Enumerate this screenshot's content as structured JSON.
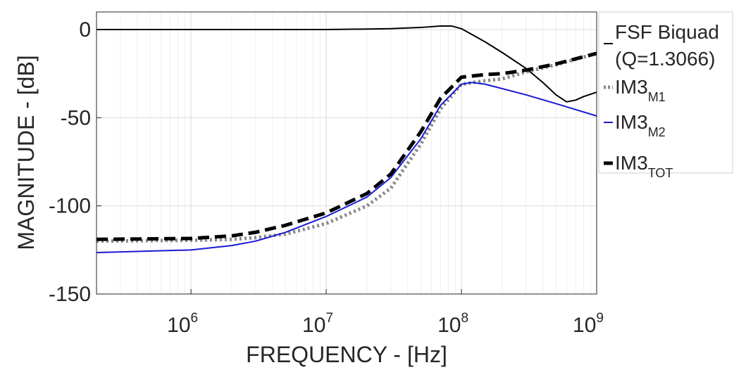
{
  "chart_data": {
    "type": "line",
    "title": "",
    "xlabel": "FREQUENCY - [Hz]",
    "ylabel": "MAGNITUDE - [dB]",
    "xscale": "log",
    "xlim": [
      200000,
      1000000000
    ],
    "ylim": [
      -150,
      10
    ],
    "grid": true,
    "legend_position": "outside-right",
    "y_ticks": [
      {
        "value": 0,
        "label": "0"
      },
      {
        "value": -50,
        "label": "-50"
      },
      {
        "value": -100,
        "label": "-100"
      },
      {
        "value": -150,
        "label": "-150"
      }
    ],
    "x_ticks": [
      {
        "value": 1000000,
        "base": "10",
        "exp": "6"
      },
      {
        "value": 10000000,
        "base": "10",
        "exp": "7"
      },
      {
        "value": 100000000,
        "base": "10",
        "exp": "8"
      },
      {
        "value": 1000000000,
        "base": "10",
        "exp": "9"
      }
    ],
    "series": [
      {
        "name": "FSF Biquad (Q=1.3066)",
        "legend_lines": [
          "FSF Biquad",
          "(Q=1.3066)"
        ],
        "color": "#000000",
        "style": "solid",
        "x": [
          200000,
          1000000,
          10000000,
          30000000,
          50000000,
          70000000,
          85000000,
          100000000,
          150000000,
          200000000,
          300000000,
          400000000,
          500000000,
          600000000,
          700000000,
          800000000,
          1000000000
        ],
        "y": [
          0,
          0,
          0,
          0.5,
          1.2,
          2.0,
          2.0,
          0.5,
          -7,
          -13,
          -22,
          -30,
          -37,
          -41,
          -40,
          -38,
          -35.5
        ]
      },
      {
        "name": "IM3_M1",
        "legend_main": "IM3",
        "legend_sub": "M1",
        "color": "#888888",
        "style": "dotted",
        "x": [
          200000,
          1000000,
          2000000,
          3000000,
          5000000,
          10000000,
          20000000,
          30000000,
          50000000,
          70000000,
          100000000,
          150000000,
          200000000,
          300000000,
          500000000,
          1000000000
        ],
        "y": [
          -120,
          -119.5,
          -119,
          -118,
          -116,
          -110,
          -100,
          -90,
          -65,
          -45,
          -31,
          -29,
          -28,
          -24,
          -20,
          -13.5
        ]
      },
      {
        "name": "IM3_M2",
        "legend_main": "IM3",
        "legend_sub": "M2",
        "color": "#1a1ad6",
        "style": "solid",
        "x": [
          200000,
          1000000,
          2000000,
          3000000,
          5000000,
          10000000,
          20000000,
          30000000,
          50000000,
          70000000,
          100000000,
          120000000,
          150000000,
          200000000,
          300000000,
          500000000,
          1000000000
        ],
        "y": [
          -126.5,
          -125,
          -122.5,
          -120,
          -115,
          -106,
          -95,
          -84,
          -62,
          -43,
          -31,
          -30,
          -31,
          -33.5,
          -37,
          -42,
          -49
        ]
      },
      {
        "name": "IM3_TOT",
        "legend_main": "IM3",
        "legend_sub": "TOT",
        "color": "#000000",
        "style": "dashed",
        "x": [
          200000,
          1000000,
          2000000,
          3000000,
          5000000,
          10000000,
          20000000,
          30000000,
          50000000,
          70000000,
          100000000,
          150000000,
          200000000,
          300000000,
          500000000,
          1000000000
        ],
        "y": [
          -119,
          -118.5,
          -117,
          -115,
          -111,
          -104,
          -93,
          -82,
          -58,
          -39,
          -27,
          -25.5,
          -25,
          -23,
          -19.5,
          -13.5
        ]
      }
    ]
  }
}
